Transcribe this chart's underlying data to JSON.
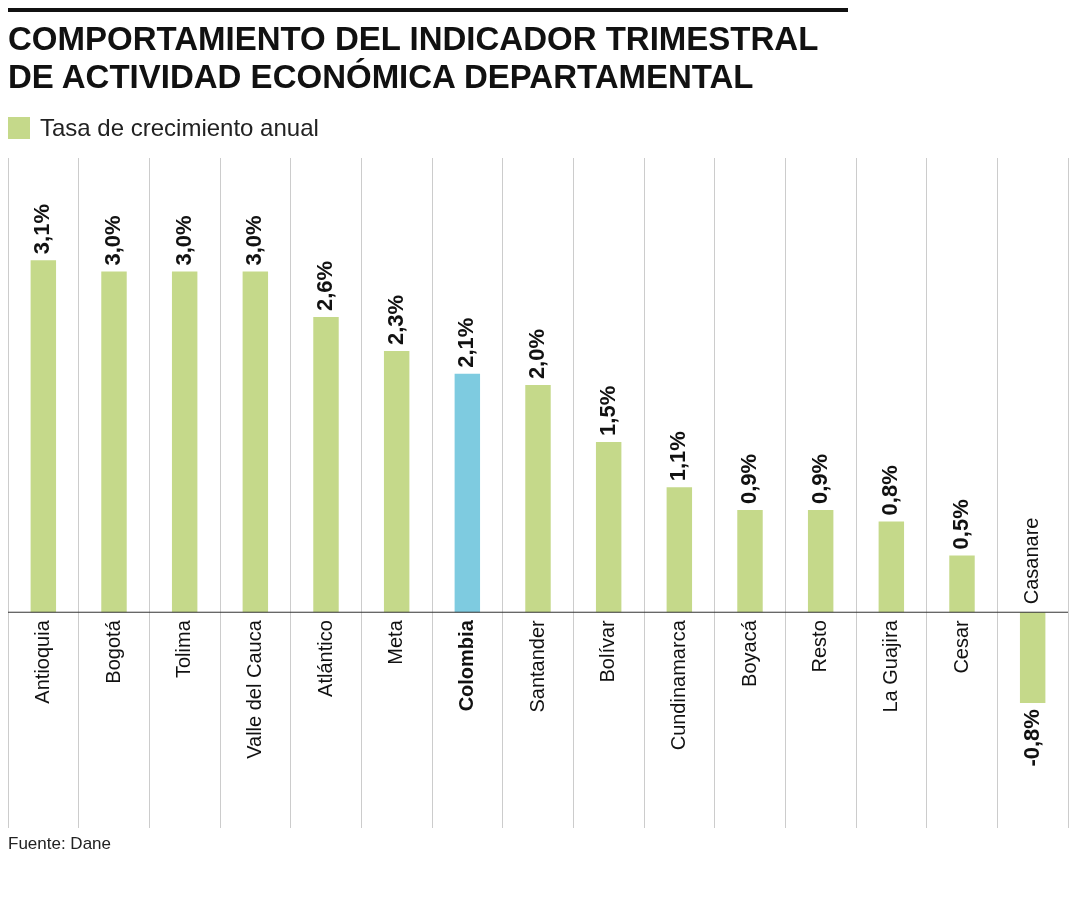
{
  "chart_data": {
    "type": "bar",
    "title": "COMPORTAMIENTO DEL INDICADOR TRIMESTRAL DE ACTIVIDAD ECONÓMICA DEPARTAMENTAL",
    "categories": [
      "Antioquia",
      "Bogotá",
      "Tolima",
      "Valle del Cauca",
      "Atlántico",
      "Meta",
      "Colombia",
      "Santander",
      "Bolívar",
      "Cundinamarca",
      "Boyacá",
      "Resto",
      "La Guajira",
      "Cesar",
      "Casanare"
    ],
    "series": [
      {
        "name": "Tasa de crecimiento anual",
        "color": "#c5d98a",
        "colors": [
          "#c5d98a",
          "#c5d98a",
          "#c5d98a",
          "#c5d98a",
          "#c5d98a",
          "#c5d98a",
          "#7ecbe0",
          "#c5d98a",
          "#c5d98a",
          "#c5d98a",
          "#c5d98a",
          "#c5d98a",
          "#c5d98a",
          "#c5d98a",
          "#c5d98a"
        ],
        "values": [
          3.1,
          3.0,
          3.0,
          3.0,
          2.6,
          2.3,
          2.1,
          2.0,
          1.5,
          1.1,
          0.9,
          0.9,
          0.8,
          0.5,
          -0.8
        ],
        "value_labels": [
          "3,1%",
          "3,0%",
          "3,0%",
          "3,0%",
          "2,6%",
          "2,3%",
          "2,1%",
          "2,0%",
          "1,5%",
          "1,1%",
          "0,9%",
          "0,9%",
          "0,8%",
          "0,5%",
          "-0,8%"
        ]
      }
    ],
    "ylim": [
      -1.9,
      4.0
    ],
    "tick_labels": "x",
    "grid": "x",
    "legend": "top left",
    "annotations": [
      "Fuente: Dane"
    ]
  }
}
